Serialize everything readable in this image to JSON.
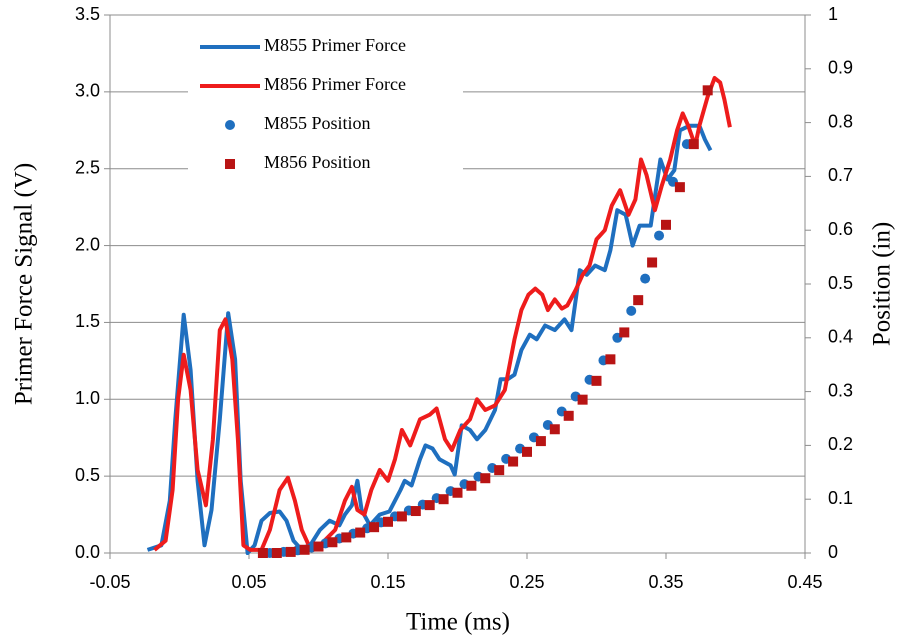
{
  "chart_data": {
    "type": "line",
    "xlabel": "Time (ms)",
    "ylabel": "Primer Force Signal (V)",
    "y2label": "Position (in)",
    "xlim": [
      -0.05,
      0.45
    ],
    "xticks": [
      -0.05,
      0.05,
      0.15,
      0.25,
      0.35,
      0.45
    ],
    "ylim": [
      0,
      3.5
    ],
    "yticks": [
      {
        "value": 0,
        "label": "0.0"
      },
      0.5,
      {
        "value": 1,
        "label": "1.0"
      },
      1.5,
      {
        "value": 2,
        "label": "2.0"
      },
      2.5,
      {
        "value": 3,
        "label": "3.0"
      },
      3.5
    ],
    "y2lim": [
      0,
      1
    ],
    "y2ticks": [
      0,
      0.1,
      0.2,
      0.3,
      0.4,
      0.5,
      0.6,
      0.7,
      0.8,
      0.9,
      1
    ],
    "grid": true,
    "legend": "upper-left",
    "series": [
      {
        "name": "M855 Primer Force",
        "color": "#1f6fbf",
        "marker": "line",
        "x": [
          -0.023,
          -0.013,
          -0.007,
          -0.003,
          0.003,
          0.008,
          0.013,
          0.018,
          0.023,
          0.029,
          0.035,
          0.04,
          0.044,
          0.049,
          0.054,
          0.059,
          0.065,
          0.072,
          0.077,
          0.082,
          0.087,
          0.094,
          0.101,
          0.108,
          0.115,
          0.119,
          0.124,
          0.128,
          0.131,
          0.137,
          0.144,
          0.151,
          0.159,
          0.162,
          0.167,
          0.173,
          0.177,
          0.182,
          0.187,
          0.195,
          0.198,
          0.203,
          0.209,
          0.214,
          0.22,
          0.227,
          0.231,
          0.236,
          0.241,
          0.246,
          0.252,
          0.257,
          0.263,
          0.27,
          0.277,
          0.282,
          0.288,
          0.293,
          0.299,
          0.306,
          0.31,
          0.315,
          0.321,
          0.326,
          0.331,
          0.339,
          0.346,
          0.351,
          0.356,
          0.36,
          0.367,
          0.374,
          0.378,
          0.382
        ],
        "values": [
          0.02,
          0.05,
          0.34,
          0.87,
          1.55,
          1.19,
          0.47,
          0.05,
          0.28,
          0.87,
          1.56,
          1.26,
          0.47,
          0,
          0.05,
          0.21,
          0.26,
          0.27,
          0.21,
          0.08,
          0.03,
          0.05,
          0.15,
          0.21,
          0.18,
          0.25,
          0.31,
          0.47,
          0.28,
          0.18,
          0.25,
          0.27,
          0.41,
          0.47,
          0.44,
          0.61,
          0.7,
          0.68,
          0.61,
          0.57,
          0.51,
          0.83,
          0.8,
          0.74,
          0.8,
          0.93,
          1.13,
          1.13,
          1.16,
          1.32,
          1.42,
          1.39,
          1.48,
          1.45,
          1.52,
          1.45,
          1.84,
          1.81,
          1.87,
          1.84,
          1.97,
          2.23,
          2.2,
          2.0,
          2.13,
          2.13,
          2.56,
          2.43,
          2.49,
          2.75,
          2.78,
          2.78,
          2.69,
          2.62
        ]
      },
      {
        "name": "M856 Primer Force",
        "color": "#ee1c1c",
        "marker": "line",
        "x": [
          -0.018,
          -0.01,
          -0.005,
          -0.001,
          0.003,
          0.008,
          0.013,
          0.019,
          0.024,
          0.029,
          0.033,
          0.038,
          0.042,
          0.046,
          0.051,
          0.059,
          0.065,
          0.072,
          0.078,
          0.083,
          0.088,
          0.094,
          0.101,
          0.112,
          0.119,
          0.124,
          0.128,
          0.133,
          0.138,
          0.144,
          0.15,
          0.155,
          0.16,
          0.166,
          0.173,
          0.18,
          0.185,
          0.191,
          0.196,
          0.202,
          0.209,
          0.214,
          0.22,
          0.227,
          0.234,
          0.241,
          0.246,
          0.251,
          0.256,
          0.261,
          0.265,
          0.27,
          0.275,
          0.279,
          0.285,
          0.29,
          0.295,
          0.3,
          0.306,
          0.311,
          0.317,
          0.323,
          0.328,
          0.332,
          0.336,
          0.342,
          0.347,
          0.353,
          0.358,
          0.362,
          0.366,
          0.371,
          0.374,
          0.38,
          0.385,
          0.389,
          0.392,
          0.396
        ],
        "values": [
          0.02,
          0.08,
          0.41,
          1.0,
          1.29,
          1.06,
          0.54,
          0.31,
          0.74,
          1.45,
          1.52,
          1.26,
          0.74,
          0.05,
          0.02,
          0.02,
          0.15,
          0.41,
          0.49,
          0.34,
          0.15,
          0.03,
          0.05,
          0.15,
          0.34,
          0.43,
          0.28,
          0.25,
          0.41,
          0.54,
          0.47,
          0.61,
          0.8,
          0.7,
          0.87,
          0.9,
          0.94,
          0.74,
          0.67,
          0.8,
          0.87,
          1.0,
          0.93,
          0.96,
          1.06,
          1.39,
          1.58,
          1.68,
          1.72,
          1.68,
          1.58,
          1.65,
          1.59,
          1.61,
          1.71,
          1.81,
          1.87,
          2.04,
          2.1,
          2.26,
          2.36,
          2.2,
          2.3,
          2.56,
          2.46,
          2.23,
          2.39,
          2.56,
          2.75,
          2.86,
          2.78,
          2.65,
          2.78,
          2.97,
          3.09,
          3.06,
          2.95,
          2.77
        ]
      },
      {
        "name": "M855 Position",
        "color": "#1f6fbf",
        "marker": "circle",
        "axis": "y2",
        "x": [
          0.065,
          0.075,
          0.085,
          0.095,
          0.105,
          0.115,
          0.125,
          0.135,
          0.145,
          0.155,
          0.165,
          0.175,
          0.185,
          0.195,
          0.205,
          0.215,
          0.225,
          0.235,
          0.245,
          0.255,
          0.265,
          0.275,
          0.285,
          0.295,
          0.305,
          0.315,
          0.325,
          0.335,
          0.345,
          0.355,
          0.365
        ],
        "values": [
          0,
          0.002,
          0.005,
          0.01,
          0.018,
          0.027,
          0.036,
          0.046,
          0.057,
          0.068,
          0.079,
          0.09,
          0.102,
          0.115,
          0.128,
          0.142,
          0.158,
          0.175,
          0.194,
          0.215,
          0.238,
          0.263,
          0.291,
          0.322,
          0.358,
          0.4,
          0.45,
          0.51,
          0.59,
          0.69,
          0.76
        ]
      },
      {
        "name": "M856 Position",
        "color": "#b81414",
        "marker": "square",
        "axis": "y2",
        "x": [
          0.06,
          0.07,
          0.08,
          0.09,
          0.1,
          0.11,
          0.12,
          0.13,
          0.14,
          0.15,
          0.16,
          0.17,
          0.18,
          0.19,
          0.2,
          0.21,
          0.22,
          0.23,
          0.24,
          0.25,
          0.26,
          0.27,
          0.28,
          0.29,
          0.3,
          0.31,
          0.32,
          0.33,
          0.34,
          0.35,
          0.36,
          0.37,
          0.38
        ],
        "values": [
          0,
          0,
          0.002,
          0.006,
          0.012,
          0.02,
          0.029,
          0.038,
          0.048,
          0.058,
          0.068,
          0.078,
          0.089,
          0.1,
          0.112,
          0.125,
          0.139,
          0.154,
          0.17,
          0.188,
          0.208,
          0.23,
          0.255,
          0.285,
          0.32,
          0.36,
          0.41,
          0.47,
          0.54,
          0.61,
          0.68,
          0.76,
          0.86
        ]
      }
    ]
  }
}
